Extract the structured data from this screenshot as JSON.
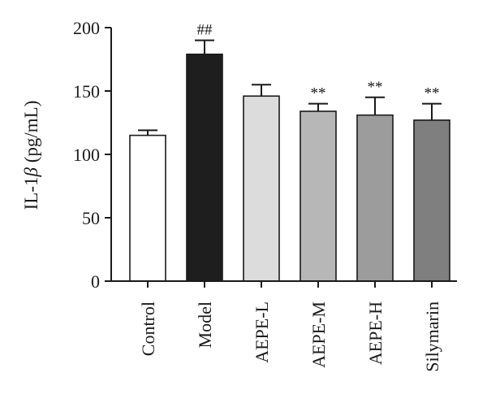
{
  "chart_data": {
    "type": "bar",
    "title": "",
    "xlabel": "",
    "ylabel": {
      "prefix": "IL-1",
      "symbol": "β",
      "suffix": " (pg/mL)"
    },
    "ylim": [
      0,
      200
    ],
    "yticks": [
      0,
      50,
      100,
      150,
      200
    ],
    "grid": false,
    "categories": [
      "Control",
      "Model",
      "AEPE-L",
      "AEPE-M",
      "AEPE-H",
      "Silymarin"
    ],
    "values": [
      115,
      179,
      146,
      134,
      131,
      127
    ],
    "errors": [
      4,
      11,
      9,
      6,
      14,
      13
    ],
    "annotations": [
      "",
      "##",
      "",
      "**",
      "**",
      "**"
    ],
    "bar_colors": [
      "#ffffff",
      "#1e1e1e",
      "#dcdcdc",
      "#b7b7b7",
      "#9c9c9c",
      "#7f7f7f"
    ]
  }
}
